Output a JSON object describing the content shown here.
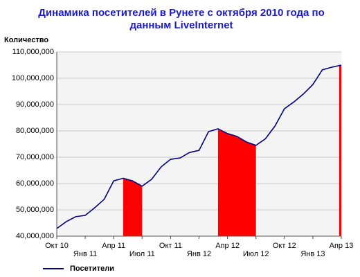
{
  "chart_data": {
    "type": "line",
    "title": [
      "Динамика посетителей в Рунете с октября 2010 года по",
      "данным LiveInternet"
    ],
    "y_label": "Количество",
    "categories": [
      "Окт 10",
      null,
      null,
      "Янв 11",
      null,
      null,
      "Апр 11",
      null,
      null,
      "Июл 11",
      null,
      null,
      "Окт 11",
      null,
      null,
      "Янв 12",
      null,
      null,
      "Апр 12",
      null,
      null,
      "Июл 12",
      null,
      null,
      "Окт 12",
      null,
      null,
      "Янв 13",
      null,
      null,
      "Апр 13"
    ],
    "series": [
      {
        "name": "Посетители",
        "color": "#000080",
        "values": [
          42900000,
          45500000,
          47400000,
          47900000,
          50800000,
          54000000,
          61000000,
          62000000,
          61000000,
          59000000,
          61600000,
          66300000,
          69200000,
          69700000,
          71800000,
          72600000,
          79700000,
          80800000,
          79000000,
          77900000,
          75800000,
          74500000,
          77000000,
          81800000,
          88400000,
          91000000,
          94000000,
          97600000,
          103200000,
          104200000,
          105000000
        ]
      },
      {
        "type": "area",
        "color": "#ff0000",
        "values": [
          null,
          null,
          null,
          null,
          null,
          null,
          null,
          62000000,
          61000000,
          59000000,
          null,
          null,
          null,
          null,
          null,
          null,
          null,
          80800000,
          79000000,
          77900000,
          75800000,
          74500000,
          null,
          null,
          null,
          null,
          null,
          null,
          null,
          null,
          105000000
        ]
      }
    ],
    "ylim": [
      40000000,
      110000000
    ],
    "yticks": [
      {
        "value": 40000000,
        "label": "40,000,000"
      },
      {
        "value": 50000000,
        "label": "50,000,000"
      },
      {
        "value": 60000000,
        "label": "60,000,000"
      },
      {
        "value": 70000000,
        "label": "70,000,000"
      },
      {
        "value": 80000000,
        "label": "80,000,000"
      },
      {
        "value": 90000000,
        "label": "90,000,000"
      },
      {
        "value": 100000000,
        "label": "100,000,000"
      },
      {
        "value": 110000000,
        "label": "110,000,000"
      }
    ],
    "grid": true,
    "legend": "bottom-left"
  }
}
